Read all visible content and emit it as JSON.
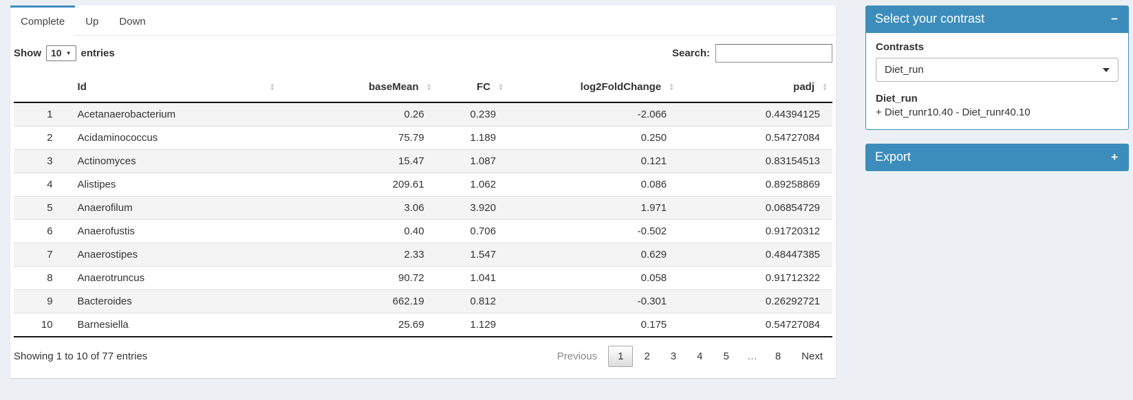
{
  "tabs": [
    {
      "label": "Complete",
      "active": true
    },
    {
      "label": "Up",
      "active": false
    },
    {
      "label": "Down",
      "active": false
    }
  ],
  "length_control": {
    "prefix": "Show",
    "value": "10",
    "suffix": "entries"
  },
  "search": {
    "label": "Search:",
    "value": "",
    "placeholder": ""
  },
  "table": {
    "columns": [
      {
        "label": "Id"
      },
      {
        "label": "baseMean"
      },
      {
        "label": "FC"
      },
      {
        "label": "log2FoldChange"
      },
      {
        "label": "padj"
      }
    ],
    "rows": [
      {
        "num": "1",
        "id": "Acetanaerobacterium",
        "baseMean": "0.26",
        "fc": "0.239",
        "log2fc": "-2.066",
        "padj": "0.44394125"
      },
      {
        "num": "2",
        "id": "Acidaminococcus",
        "baseMean": "75.79",
        "fc": "1.189",
        "log2fc": "0.250",
        "padj": "0.54727084"
      },
      {
        "num": "3",
        "id": "Actinomyces",
        "baseMean": "15.47",
        "fc": "1.087",
        "log2fc": "0.121",
        "padj": "0.83154513"
      },
      {
        "num": "4",
        "id": "Alistipes",
        "baseMean": "209.61",
        "fc": "1.062",
        "log2fc": "0.086",
        "padj": "0.89258869"
      },
      {
        "num": "5",
        "id": "Anaerofilum",
        "baseMean": "3.06",
        "fc": "3.920",
        "log2fc": "1.971",
        "padj": "0.06854729"
      },
      {
        "num": "6",
        "id": "Anaerofustis",
        "baseMean": "0.40",
        "fc": "0.706",
        "log2fc": "-0.502",
        "padj": "0.91720312"
      },
      {
        "num": "7",
        "id": "Anaerostipes",
        "baseMean": "2.33",
        "fc": "1.547",
        "log2fc": "0.629",
        "padj": "0.48447385"
      },
      {
        "num": "8",
        "id": "Anaerotruncus",
        "baseMean": "90.72",
        "fc": "1.041",
        "log2fc": "0.058",
        "padj": "0.91712322"
      },
      {
        "num": "9",
        "id": "Bacteroides",
        "baseMean": "662.19",
        "fc": "0.812",
        "log2fc": "-0.301",
        "padj": "0.26292721"
      },
      {
        "num": "10",
        "id": "Barnesiella",
        "baseMean": "25.69",
        "fc": "1.129",
        "log2fc": "0.175",
        "padj": "0.54727084"
      }
    ]
  },
  "footer": {
    "info": "Showing 1 to 10 of 77 entries",
    "pagination": [
      {
        "label": "Previous",
        "state": "disabled"
      },
      {
        "label": "1",
        "state": "current"
      },
      {
        "label": "2",
        "state": "normal"
      },
      {
        "label": "3",
        "state": "normal"
      },
      {
        "label": "4",
        "state": "normal"
      },
      {
        "label": "5",
        "state": "normal"
      },
      {
        "label": "…",
        "state": "ellipsis"
      },
      {
        "label": "8",
        "state": "normal"
      },
      {
        "label": "Next",
        "state": "normal"
      }
    ]
  },
  "sidebar": {
    "contrast_box": {
      "title": "Select your contrast",
      "collapse_icon": "−",
      "field_label": "Contrasts",
      "selected_contrast": "Diet_run",
      "contrast_name": "Diet_run",
      "contrast_formula": "+ Diet_runr10.40 - Diet_runr40.10"
    },
    "export_box": {
      "title": "Export",
      "collapse_icon": "+"
    }
  },
  "colors": {
    "accent": "#3c8dbc",
    "page_bg": "#ecf0f5",
    "stripe": "#f4f4f4"
  }
}
